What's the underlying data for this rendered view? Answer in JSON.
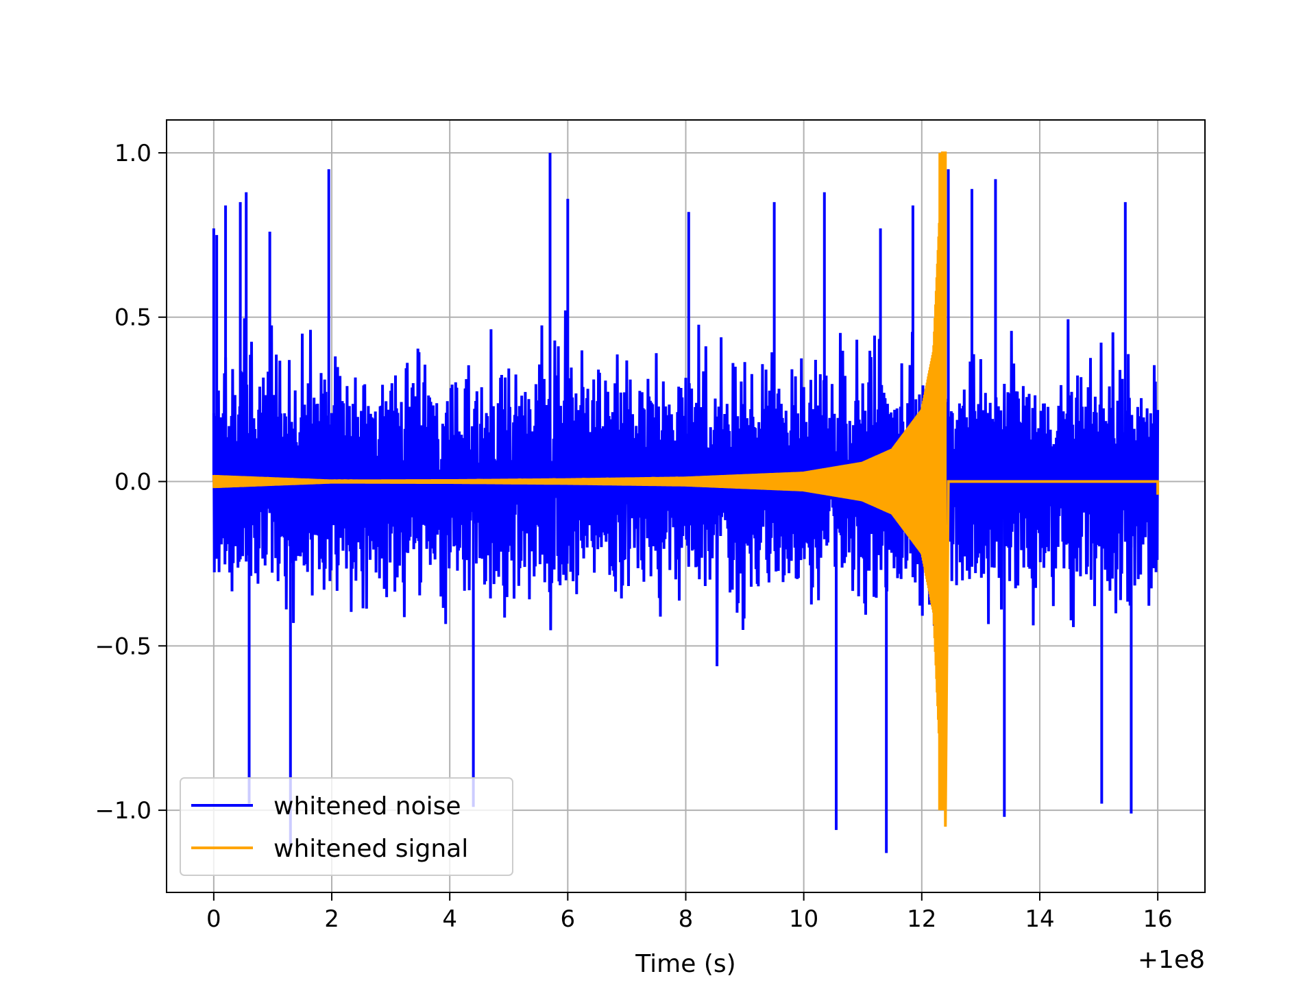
{
  "chart_data": {
    "type": "line",
    "title": "",
    "xlabel": "Time (s)",
    "ylabel": "",
    "x_offset_label": "+1e8",
    "xlim": [
      -0.8,
      16.8
    ],
    "ylim": [
      -1.25,
      1.1
    ],
    "xticks": [
      0,
      2,
      4,
      6,
      8,
      10,
      12,
      14,
      16
    ],
    "xtick_labels": [
      "0",
      "2",
      "4",
      "6",
      "8",
      "10",
      "12",
      "14",
      "16"
    ],
    "yticks": [
      1.0,
      0.5,
      0.0,
      -0.5,
      -1.0
    ],
    "ytick_labels": [
      "1.0",
      "0.5",
      "0.0",
      "−0.5",
      "−1.0"
    ],
    "grid": true,
    "legend_position": "lower-left",
    "series": [
      {
        "name": "whitened noise",
        "color": "#0000ff",
        "x_range": [
          0,
          16
        ],
        "spikes": [
          {
            "x": 0.0,
            "value": 0.77
          },
          {
            "x": 0.05,
            "value": 0.75
          },
          {
            "x": 0.2,
            "value": 0.84
          },
          {
            "x": 0.45,
            "value": 0.85
          },
          {
            "x": 0.55,
            "value": 0.88
          },
          {
            "x": 0.95,
            "value": 0.76
          },
          {
            "x": 1.95,
            "value": 0.95
          },
          {
            "x": 5.7,
            "value": 1.0
          },
          {
            "x": 6.0,
            "value": 0.86
          },
          {
            "x": 8.05,
            "value": 0.82
          },
          {
            "x": 9.5,
            "value": 0.85
          },
          {
            "x": 10.35,
            "value": 0.88
          },
          {
            "x": 11.3,
            "value": 0.77
          },
          {
            "x": 11.85,
            "value": 0.84
          },
          {
            "x": 12.45,
            "value": 0.95
          },
          {
            "x": 12.85,
            "value": 0.89
          },
          {
            "x": 13.25,
            "value": 0.92
          },
          {
            "x": 15.45,
            "value": 0.85
          },
          {
            "x": 0.6,
            "value": -0.98
          },
          {
            "x": 1.3,
            "value": -1.11
          },
          {
            "x": 4.4,
            "value": -0.99
          },
          {
            "x": 10.55,
            "value": -1.06
          },
          {
            "x": 11.4,
            "value": -1.13
          },
          {
            "x": 13.4,
            "value": -1.02
          },
          {
            "x": 15.05,
            "value": -0.98
          },
          {
            "x": 15.55,
            "value": -1.01
          }
        ],
        "envelope": {
          "typical_max": 0.55,
          "typical_min": -0.55
        }
      },
      {
        "name": "whitened signal",
        "color": "#ffa500",
        "x_range": [
          0,
          16
        ],
        "points": [
          {
            "x": 0.0,
            "y": 0.02
          },
          {
            "x": 2.0,
            "y": 0.006
          },
          {
            "x": 4.0,
            "y": 0.007
          },
          {
            "x": 6.0,
            "y": 0.01
          },
          {
            "x": 8.0,
            "y": 0.015
          },
          {
            "x": 10.0,
            "y": 0.03
          },
          {
            "x": 11.0,
            "y": 0.06
          },
          {
            "x": 11.5,
            "y": 0.1
          },
          {
            "x": 12.0,
            "y": 0.22
          },
          {
            "x": 12.2,
            "y": 0.4
          },
          {
            "x": 12.35,
            "y": 1.0
          },
          {
            "x": 12.4,
            "y": -1.05
          },
          {
            "x": 12.45,
            "y": 0.0
          },
          {
            "x": 16.0,
            "y": 0.0
          },
          {
            "x": 16.0,
            "y": -0.04
          }
        ]
      }
    ]
  }
}
